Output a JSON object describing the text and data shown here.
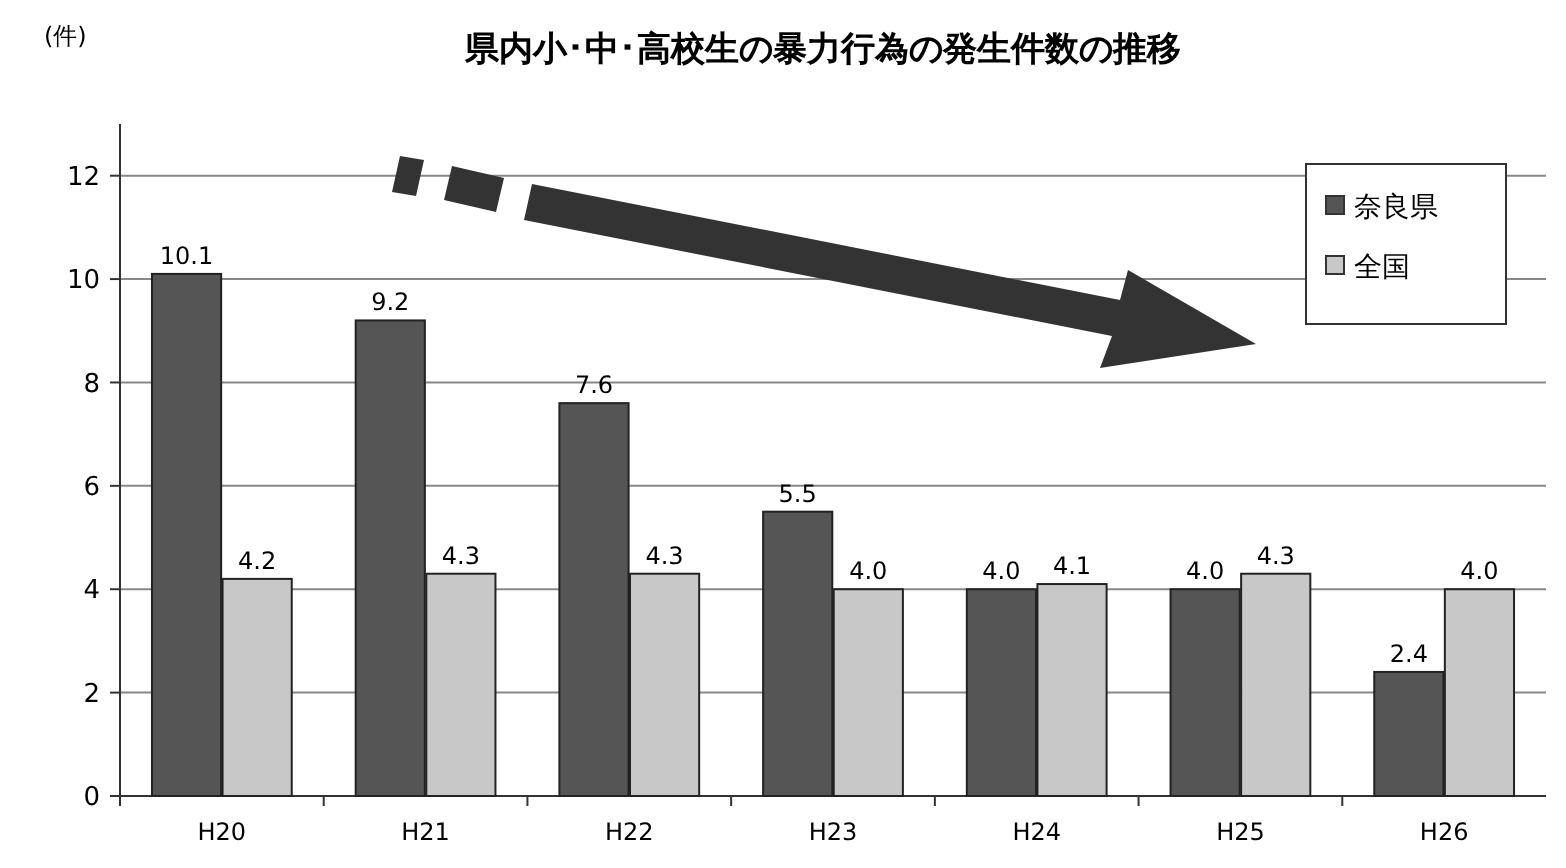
{
  "chart_data": {
    "type": "bar",
    "title": "県内小･中･高校生の暴力行為の発生件数の推移",
    "ylabel": "(件)",
    "categories": [
      "H20",
      "H21",
      "H22",
      "H23",
      "H24",
      "H25",
      "H26"
    ],
    "series": [
      {
        "name": "奈良県",
        "color": "#555555",
        "values": [
          10.1,
          9.2,
          7.6,
          5.5,
          4.0,
          4.0,
          2.4
        ],
        "value_labels": [
          "10.1",
          "9.2",
          "7.6",
          "5.5",
          "4.0",
          "4.0",
          "2.4"
        ]
      },
      {
        "name": "全国",
        "color": "#c8c8c8",
        "values": [
          4.2,
          4.3,
          4.3,
          4.0,
          4.1,
          4.3,
          4.0
        ],
        "value_labels": [
          "4.2",
          "4.3",
          "4.3",
          "4.0",
          "4.1",
          "4.3",
          "4.0"
        ]
      }
    ],
    "ylim": [
      0,
      13
    ],
    "yticks": [
      0,
      2,
      4,
      6,
      8,
      10,
      12
    ],
    "grid": "y",
    "legend": "top right"
  }
}
